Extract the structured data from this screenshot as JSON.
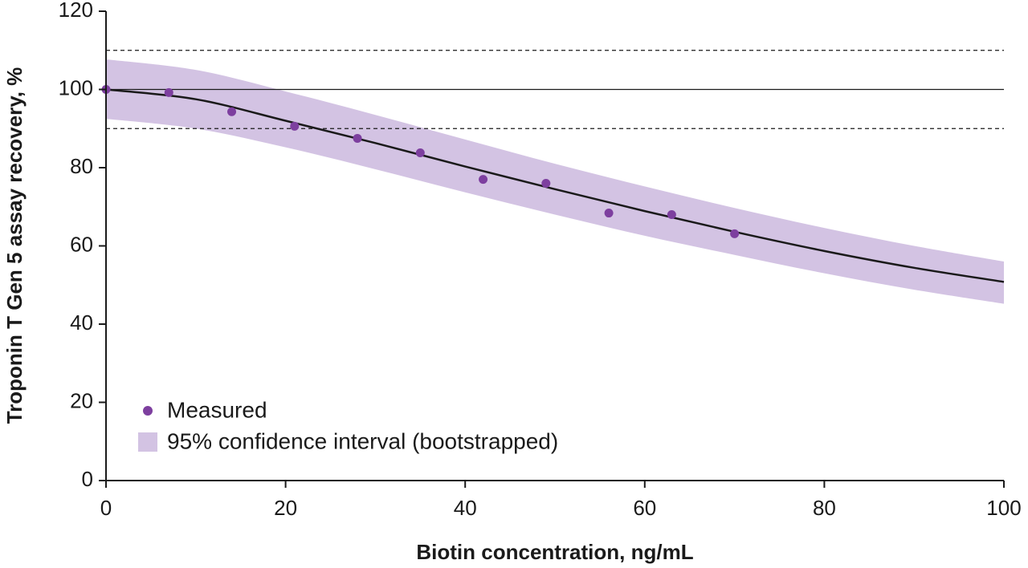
{
  "chart_data": {
    "type": "line",
    "xlabel": "Biotin concentration, ng/mL",
    "ylabel": "Troponin T Gen 5 assay recovery, %",
    "xlim": [
      0,
      100
    ],
    "xticks": [
      0,
      20,
      40,
      60,
      80,
      100
    ],
    "ylim": [
      0,
      120
    ],
    "yticks": [
      0,
      20,
      40,
      60,
      80,
      100,
      120
    ],
    "grid": false,
    "legend": "lower left",
    "reference_lines": [
      {
        "value": 110,
        "style": "dashed"
      },
      {
        "value": 100,
        "style": "solid"
      },
      {
        "value": 90,
        "style": "dashed"
      }
    ],
    "series": [
      {
        "kind": "band",
        "name": "95% confidence interval (bootstrapped)",
        "color": "#d3c3e3",
        "x": [
          0,
          10,
          20,
          30,
          40,
          50,
          60,
          70,
          80,
          90,
          100
        ],
        "upper": [
          107.7,
          105,
          99.5,
          93.5,
          87.2,
          81,
          75.2,
          69.7,
          64.6,
          60,
          56
        ],
        "lower": [
          92.5,
          90,
          85.2,
          79.6,
          73.7,
          68,
          62.6,
          57.7,
          53,
          48.8,
          45.2
        ]
      },
      {
        "kind": "line",
        "color": "#1a1a1a",
        "x": [
          0,
          10,
          20,
          30,
          40,
          50,
          60,
          70,
          80,
          90,
          100
        ],
        "values": [
          100,
          97.5,
          92,
          86.3,
          80.3,
          74.5,
          68.9,
          63.6,
          58.7,
          54.4,
          50.8
        ]
      },
      {
        "kind": "scatter",
        "name": "Measured",
        "color": "#7d3f9f",
        "x": [
          0,
          7,
          14,
          21,
          28,
          35,
          42,
          49,
          56,
          63,
          70
        ],
        "values": [
          100,
          99.2,
          94.3,
          90.6,
          87.5,
          83.8,
          77,
          76,
          68.4,
          68,
          63.1
        ]
      }
    ]
  }
}
